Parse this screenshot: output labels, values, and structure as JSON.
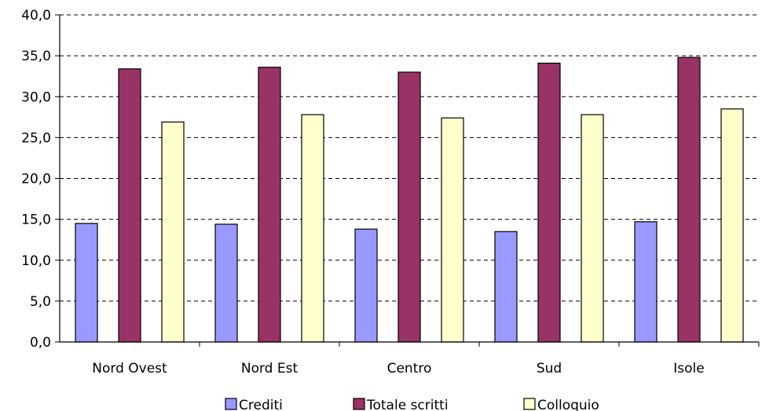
{
  "chart_data": {
    "type": "bar",
    "categories": [
      "Nord Ovest",
      "Nord Est",
      "Centro",
      "Sud",
      "Isole"
    ],
    "series": [
      {
        "name": "Crediti",
        "color": "#9999FF",
        "values": [
          14.5,
          14.4,
          13.8,
          13.5,
          14.7
        ]
      },
      {
        "name": "Totale scritti",
        "color": "#993366",
        "values": [
          33.4,
          33.6,
          33.0,
          34.1,
          34.8
        ]
      },
      {
        "name": "Colloquio",
        "color": "#FFFFCC",
        "values": [
          26.9,
          27.8,
          27.4,
          27.8,
          28.5
        ]
      }
    ],
    "ylim": [
      0,
      40
    ],
    "yticks": [
      "0,0",
      "5,0",
      "10,0",
      "15,0",
      "20,0",
      "25,0",
      "30,0",
      "35,0",
      "40,0"
    ],
    "grid": "horizontal-dashed",
    "legend_position": "bottom"
  }
}
